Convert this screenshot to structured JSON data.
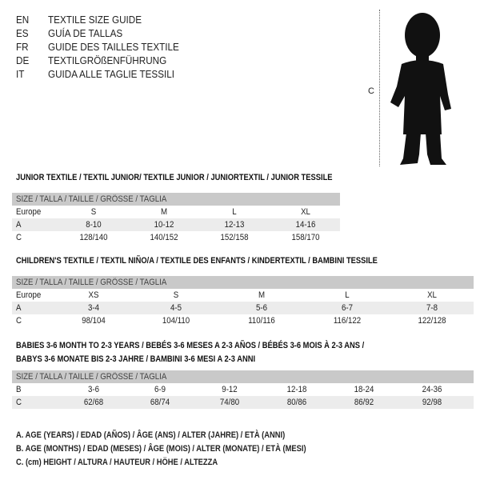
{
  "title_lines": [
    {
      "code": "EN",
      "text": "TEXTILE SIZE GUIDE"
    },
    {
      "code": "ES",
      "text": "GUÍA DE TALLAS"
    },
    {
      "code": "FR",
      "text": "GUIDE DES TAILLES TEXTILE"
    },
    {
      "code": "DE",
      "text": "TEXTILGRÖßENFÜHRUNG"
    },
    {
      "code": "IT",
      "text": "GUIDA ALLE TAGLIE TESSILI"
    }
  ],
  "figure": {
    "measure_label": "C"
  },
  "size_header": "SIZE / TALLA / TAILLE / GRÖSSE / TAGLIA",
  "junior": {
    "title": "JUNIOR TEXTILE / TEXTIL JUNIOR/ TEXTILE JUNIOR / JUNIORTEXTIL / JUNIOR TESSILE",
    "rows": [
      {
        "label": "Europe",
        "values": [
          "S",
          "M",
          "L",
          "XL"
        ]
      },
      {
        "label": "A",
        "values": [
          "8-10",
          "10-12",
          "12-13",
          "14-16"
        ]
      },
      {
        "label": "C",
        "values": [
          "128/140",
          "140/152",
          "152/158",
          "158/170"
        ]
      }
    ]
  },
  "children": {
    "title": "CHILDREN'S TEXTILE / TEXTIL NIÑO/A / TEXTILE DES ENFANTS / KINDERTEXTIL / BAMBINI TESSILE",
    "rows": [
      {
        "label": "Europe",
        "values": [
          "XS",
          "S",
          "M",
          "L",
          "XL"
        ]
      },
      {
        "label": "A",
        "values": [
          "3-4",
          "4-5",
          "5-6",
          "6-7",
          "7-8"
        ]
      },
      {
        "label": "C",
        "values": [
          "98/104",
          "104/110",
          "110/116",
          "116/122",
          "122/128"
        ]
      }
    ]
  },
  "babies": {
    "title_line1": "BABIES 3-6 MONTH TO 2-3 YEARS / BEBÉS 3-6 MESES A 2-3 AÑOS / BÉBÉS 3-6 MOIS À 2-3 ANS /",
    "title_line2": "BABYS 3-6 MONATE BIS 2-3 JAHRE / BAMBINI 3-6 MESI A 2-3 ANNI",
    "rows": [
      {
        "label": "B",
        "values": [
          "3-6",
          "6-9",
          "9-12",
          "12-18",
          "18-24",
          "24-36"
        ]
      },
      {
        "label": "C",
        "values": [
          "62/68",
          "68/74",
          "74/80",
          "80/86",
          "86/92",
          "92/98"
        ]
      }
    ]
  },
  "legend": [
    "A. AGE (YEARS) / EDAD (AÑOS) / ÂGE (ANS) / ALTER (JAHRE) / ETÀ (ANNI)",
    "B. AGE (MONTHS) / EDAD (MESES) / ÂGE (MOIS) / ALTER (MONATE) / ETÀ (MESI)",
    "C. (cm) HEIGHT / ALTURA / HAUTEUR / HÖHE / ALTEZZA"
  ]
}
